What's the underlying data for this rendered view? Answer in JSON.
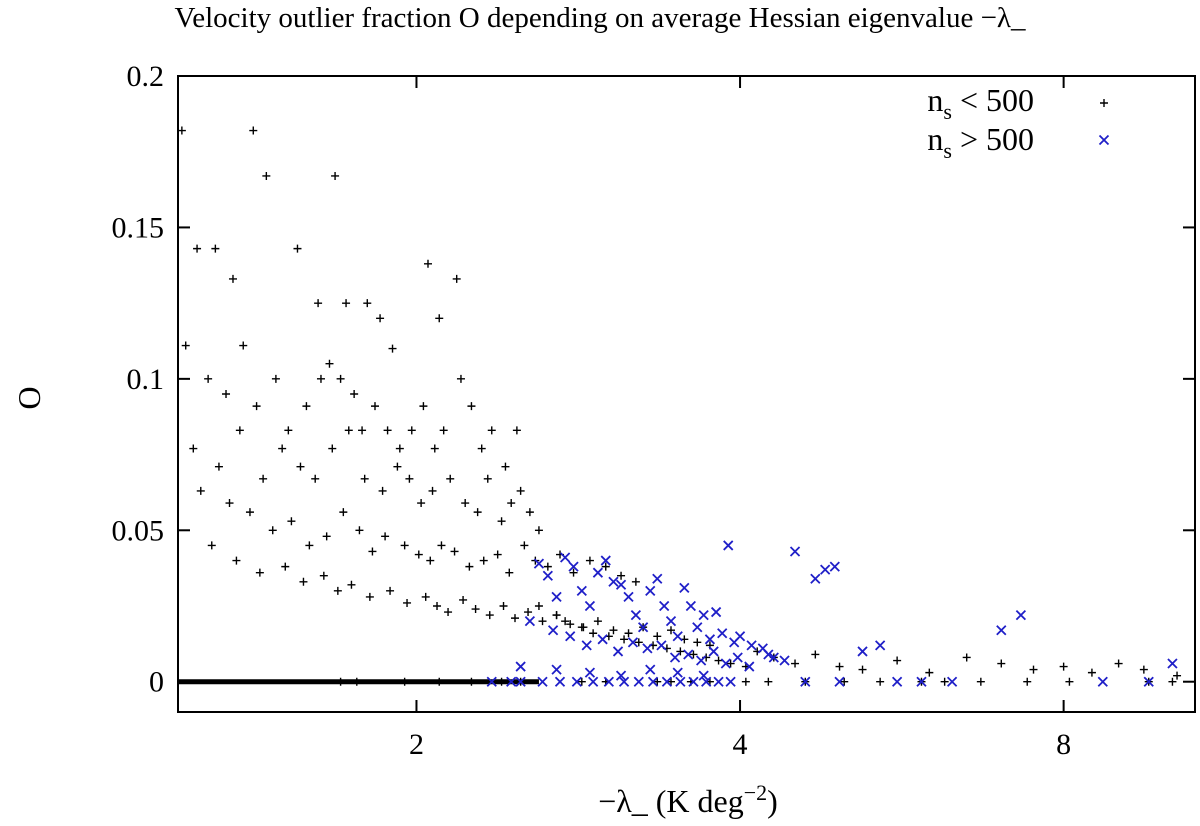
{
  "chart_data": {
    "type": "scatter",
    "title": "Velocity outlier fraction O depending on average Hessian eigenvalue −λ_",
    "xlabel": "−λ_  (K deg",
    "xlabel_sup": "−2",
    "xlabel_end": ")",
    "ylabel": "O",
    "x_scale": "log",
    "xlim": [
      1.2,
      10.6
    ],
    "ylim": [
      -0.01,
      0.2
    ],
    "x_ticks": [
      2,
      4,
      8
    ],
    "x_tick_labels": [
      "2",
      "4",
      "8"
    ],
    "y_ticks": [
      0,
      0.05,
      0.1,
      0.15,
      0.2
    ],
    "y_tick_labels": [
      "0",
      "0.05",
      "0.1",
      "0.15",
      "0.2"
    ],
    "grid": false,
    "legend_position": "top-right",
    "series": [
      {
        "name": "n",
        "name_sub": "s",
        "name_rest": " < 500",
        "marker": "plus",
        "color": "#000000",
        "approximate": true,
        "x": [
          1.21,
          1.25,
          1.3,
          1.35,
          1.41,
          1.45,
          1.55,
          1.62,
          1.68,
          1.72,
          1.8,
          1.85,
          1.9,
          2.05,
          2.1,
          2.18,
          1.22,
          1.28,
          1.33,
          1.38,
          1.42,
          1.48,
          1.52,
          1.58,
          1.63,
          1.66,
          1.7,
          1.75,
          1.78,
          1.83,
          1.88,
          1.93,
          1.98,
          2.03,
          2.08,
          2.12,
          2.2,
          2.25,
          2.3,
          2.35,
          2.42,
          2.48,
          1.24,
          1.31,
          1.37,
          1.44,
          1.5,
          1.56,
          1.61,
          1.67,
          1.73,
          1.79,
          1.86,
          1.92,
          1.97,
          2.02,
          2.07,
          2.15,
          2.22,
          2.28,
          2.33,
          2.4,
          2.45,
          2.5,
          2.55,
          2.6,
          1.26,
          1.34,
          1.4,
          1.47,
          1.53,
          1.59,
          1.65,
          1.71,
          1.77,
          1.82,
          1.87,
          1.95,
          2.01,
          2.06,
          2.11,
          2.17,
          2.24,
          2.31,
          2.38,
          2.44,
          2.52,
          2.58,
          2.65,
          2.72,
          2.8,
          2.9,
          3.0,
          3.1,
          3.2,
          1.29,
          1.36,
          1.43,
          1.51,
          1.57,
          1.64,
          1.69,
          1.74,
          1.81,
          1.89,
          1.96,
          2.04,
          2.09,
          2.14,
          2.21,
          2.27,
          2.34,
          2.41,
          2.47,
          2.54,
          2.62,
          2.7,
          2.78,
          2.86,
          2.95,
          3.05,
          3.15,
          3.25,
          3.35,
          3.45,
          3.55,
          3.65,
          3.75,
          2.6,
          2.7,
          2.75,
          2.85,
          2.92,
          3.02,
          3.12,
          3.22,
          3.32,
          3.42,
          3.52,
          3.62,
          3.72,
          3.82,
          3.92,
          4.05,
          4.15,
          4.3,
          4.5,
          4.7,
          4.95,
          5.2,
          5.6,
          6.0,
          6.5,
          7.0,
          7.5,
          8.0,
          8.5,
          9.0,
          9.5,
          10.2,
          1.7,
          1.76,
          1.95,
          2.1,
          2.25,
          2.4,
          2.5,
          2.85,
          3.0,
          3.35,
          3.45,
          3.6,
          3.75,
          4.05,
          4.25,
          4.6,
          5.0,
          5.4,
          5.9,
          6.2,
          6.7,
          7.4,
          8.1,
          9.6,
          10.1
        ],
        "y": [
          0.182,
          0.143,
          0.143,
          0.133,
          0.182,
          0.167,
          0.143,
          0.125,
          0.167,
          0.125,
          0.125,
          0.12,
          0.11,
          0.138,
          0.12,
          0.133,
          0.111,
          0.1,
          0.095,
          0.111,
          0.091,
          0.1,
          0.083,
          0.091,
          0.1,
          0.105,
          0.1,
          0.095,
          0.083,
          0.091,
          0.083,
          0.077,
          0.083,
          0.091,
          0.077,
          0.083,
          0.1,
          0.091,
          0.077,
          0.083,
          0.071,
          0.083,
          0.077,
          0.071,
          0.083,
          0.067,
          0.077,
          0.071,
          0.067,
          0.077,
          0.083,
          0.067,
          0.063,
          0.071,
          0.067,
          0.059,
          0.063,
          0.067,
          0.059,
          0.056,
          0.067,
          0.053,
          0.059,
          0.063,
          0.056,
          0.05,
          0.063,
          0.059,
          0.056,
          0.05,
          0.053,
          0.045,
          0.048,
          0.056,
          0.05,
          0.043,
          0.048,
          0.045,
          0.042,
          0.04,
          0.045,
          0.043,
          0.038,
          0.04,
          0.042,
          0.036,
          0.045,
          0.04,
          0.038,
          0.042,
          0.036,
          0.04,
          0.038,
          0.035,
          0.033,
          0.045,
          0.04,
          0.036,
          0.038,
          0.033,
          0.035,
          0.03,
          0.032,
          0.028,
          0.03,
          0.026,
          0.028,
          0.025,
          0.023,
          0.027,
          0.024,
          0.022,
          0.025,
          0.021,
          0.023,
          0.02,
          0.022,
          0.019,
          0.018,
          0.02,
          0.017,
          0.016,
          0.018,
          0.015,
          0.017,
          0.014,
          0.013,
          0.012,
          0.025,
          0.022,
          0.02,
          0.018,
          0.016,
          0.015,
          0.014,
          0.013,
          0.012,
          0.011,
          0.01,
          0.009,
          0.008,
          0.007,
          0.006,
          0.005,
          0.01,
          0.008,
          0.006,
          0.009,
          0.005,
          0.004,
          0.007,
          0.003,
          0.008,
          0.006,
          0.004,
          0.005,
          0.003,
          0.006,
          0.004,
          0.002,
          0.0,
          0.0,
          0.0,
          0.0,
          0.0,
          0.0,
          0.0,
          0.0,
          0.0,
          0.0,
          0.0,
          0.0,
          0.0,
          0.0,
          0.0,
          0.0,
          0.0,
          0.0,
          0.0,
          0.0,
          0.0,
          0.0,
          0.0,
          0.0,
          0.0
        ]
      },
      {
        "name": "n",
        "name_sub": "s",
        "name_rest": " > 500",
        "marker": "cross",
        "color": "#1f1fc8",
        "approximate": true,
        "x": [
          2.35,
          2.5,
          2.6,
          2.65,
          2.7,
          2.75,
          2.8,
          2.85,
          2.9,
          2.95,
          3.0,
          3.05,
          3.1,
          3.15,
          3.2,
          3.25,
          3.3,
          3.35,
          3.4,
          3.45,
          3.5,
          3.55,
          3.6,
          3.65,
          3.7,
          3.75,
          3.8,
          3.85,
          3.9,
          3.95,
          4.0,
          4.1,
          4.2,
          4.3,
          4.5,
          4.7,
          4.8,
          4.9,
          5.2,
          5.4,
          5.9,
          6.3,
          7.0,
          7.3,
          8.7,
          9.6,
          10.1,
          2.55,
          2.68,
          2.78,
          2.88,
          2.98,
          3.08,
          3.18,
          3.28,
          3.38,
          3.48,
          3.58,
          3.68,
          3.78,
          3.88,
          3.98,
          4.08,
          4.25,
          4.4,
          4.6,
          4.95,
          5.6,
          2.45,
          2.62,
          2.72,
          2.82,
          2.92,
          3.02,
          3.12,
          3.22,
          3.32,
          3.42,
          3.52,
          3.62,
          3.72,
          3.82,
          3.92,
          2.5,
          2.7,
          2.9,
          3.1,
          3.3,
          3.5,
          3.7
        ],
        "y": [
          0.0,
          0.0,
          0.039,
          0.035,
          0.028,
          0.041,
          0.038,
          0.03,
          0.025,
          0.036,
          0.04,
          0.033,
          0.032,
          0.028,
          0.022,
          0.018,
          0.03,
          0.034,
          0.025,
          0.02,
          0.015,
          0.031,
          0.025,
          0.018,
          0.022,
          0.014,
          0.023,
          0.016,
          0.045,
          0.013,
          0.015,
          0.012,
          0.011,
          0.008,
          0.043,
          0.034,
          0.037,
          0.038,
          0.01,
          0.012,
          0.0,
          0.0,
          0.017,
          0.022,
          0.0,
          0.0,
          0.006,
          0.02,
          0.017,
          0.015,
          0.012,
          0.014,
          0.01,
          0.013,
          0.011,
          0.012,
          0.008,
          0.009,
          0.007,
          0.01,
          0.006,
          0.008,
          0.005,
          0.009,
          0.007,
          0.0,
          0.0,
          0.0,
          0.0,
          0.0,
          0.0,
          0.0,
          0.0,
          0.0,
          0.0,
          0.0,
          0.0,
          0.0,
          0.0,
          0.0,
          0.0,
          0.0,
          0.0,
          0.005,
          0.004,
          0.003,
          0.002,
          0.004,
          0.003,
          0.002
        ]
      }
    ],
    "baseline_band": {
      "y": 0,
      "x_from": 1.2,
      "x_to": 2.6
    }
  }
}
